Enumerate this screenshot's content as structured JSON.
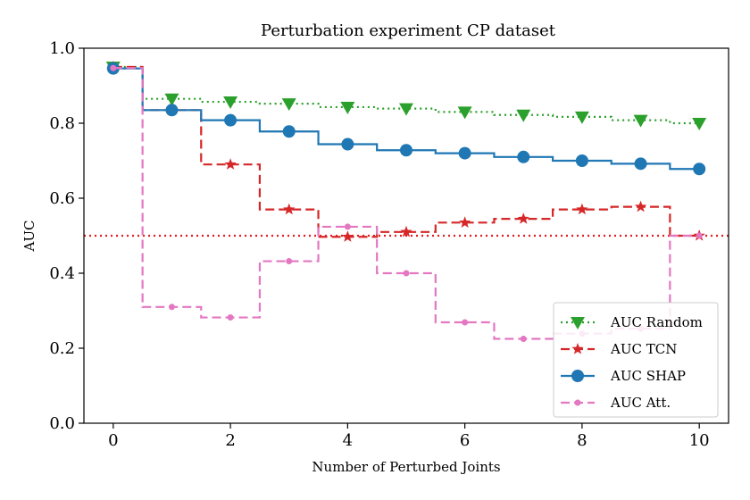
{
  "chart_data": {
    "type": "line",
    "title": "Perturbation experiment CP dataset",
    "xlabel": "Number of Perturbed Joints",
    "ylabel": "AUC",
    "xlim": [
      -0.5,
      10.5
    ],
    "ylim": [
      0.0,
      1.0
    ],
    "x_ticks": [
      0,
      2,
      4,
      6,
      8,
      10
    ],
    "y_ticks": [
      0.0,
      0.2,
      0.4,
      0.6,
      0.8,
      1.0
    ],
    "x_tick_labels": [
      "0",
      "2",
      "4",
      "6",
      "8",
      "10"
    ],
    "y_tick_labels": [
      "0.0",
      "0.2",
      "0.4",
      "0.6",
      "0.8",
      "1.0"
    ],
    "step": "mid",
    "grid": false,
    "legend_position": "bottom-right",
    "x": [
      0,
      1,
      2,
      3,
      4,
      5,
      6,
      7,
      8,
      9,
      10
    ],
    "series": [
      {
        "name": "AUC Random",
        "color": "#2ca02c",
        "linestyle": "dotted",
        "marker": "triangle-down",
        "values": [
          0.95,
          0.865,
          0.857,
          0.852,
          0.843,
          0.839,
          0.83,
          0.822,
          0.817,
          0.808,
          0.8
        ]
      },
      {
        "name": "AUC TCN",
        "color": "#d62728",
        "linestyle": "dashed",
        "marker": "star",
        "values": [
          0.95,
          0.835,
          0.69,
          0.57,
          0.497,
          0.51,
          0.535,
          0.545,
          0.57,
          0.577,
          0.5
        ]
      },
      {
        "name": "AUC SHAP",
        "color": "#1f77b4",
        "linestyle": "solid",
        "marker": "circle",
        "values": [
          0.946,
          0.835,
          0.808,
          0.778,
          0.744,
          0.728,
          0.72,
          0.71,
          0.7,
          0.692,
          0.678
        ]
      },
      {
        "name": "AUC Att.",
        "color": "#e377c2",
        "linestyle": "dashed",
        "marker": "small-circle",
        "values": [
          0.947,
          0.31,
          0.282,
          0.432,
          0.524,
          0.4,
          0.269,
          0.225,
          0.239,
          0.252,
          0.5
        ]
      }
    ],
    "reference_line": {
      "y": 0.5,
      "color": "#e31a1c",
      "linestyle": "dotted"
    }
  }
}
